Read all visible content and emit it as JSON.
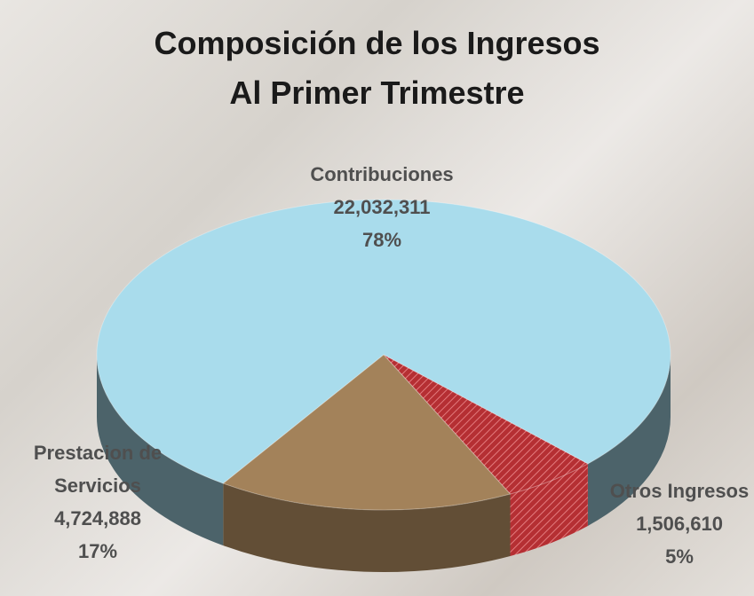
{
  "chart_data": {
    "type": "pie",
    "title": "Composición de los Ingresos",
    "subtitle": "Al Primer Trimestre",
    "categories": [
      "Contribuciones",
      "Otros Ingresos",
      "Prestacion de Servicios"
    ],
    "values": [
      22032311,
      1506610,
      4724888
    ],
    "value_labels": [
      "22,032,311",
      "1,506,610",
      "4,724,888"
    ],
    "percent_labels": [
      "78%",
      "5%",
      "17%"
    ],
    "colors": [
      "#a9dcec",
      "#c8383c",
      "#a3825a"
    ]
  }
}
